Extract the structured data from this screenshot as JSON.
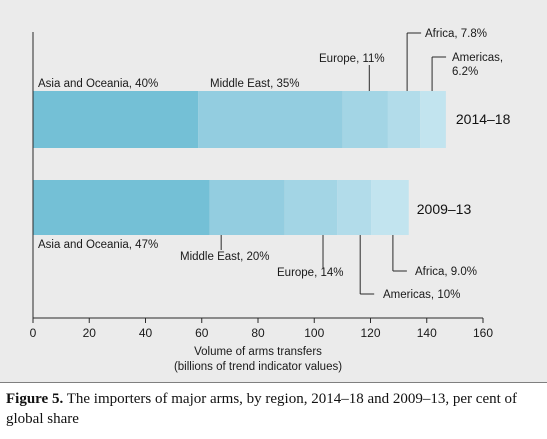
{
  "caption": {
    "label": "Figure 5.",
    "text": "The importers of major arms, by region, 2014–18 and 2009–13, per cent of global share"
  },
  "colors": {
    "background": "#ebebeb",
    "segments": [
      "#74c0d6",
      "#93cde0",
      "#a3d5e5",
      "#b2dcea",
      "#c2e4ef"
    ]
  },
  "chart_data": {
    "type": "bar",
    "orientation": "horizontal",
    "stacked": true,
    "xlabel": "Volume of arms transfers",
    "xlabel_sub": "(billions of trend indicator values)",
    "xlim": [
      0,
      160
    ],
    "xticks": [
      0,
      20,
      40,
      60,
      80,
      100,
      120,
      140,
      160
    ],
    "categories": [
      "2014–18",
      "2009–13"
    ],
    "series": [
      {
        "name": "Asia and Oceania",
        "values": [
          58.7,
          62.8
        ]
      },
      {
        "name": "Middle East",
        "values": [
          51.4,
          26.7
        ]
      },
      {
        "name": "Europe",
        "values": [
          16.1,
          18.7
        ]
      },
      {
        "name": "Africa",
        "values": [
          11.5,
          12.0
        ]
      },
      {
        "name": "Americas",
        "values": [
          9.1,
          13.4
        ]
      }
    ],
    "labels": {
      "2014–18": [
        "Asia and Oceania, 40%",
        "Middle East, 35%",
        "Europe, 11%",
        "Africa, 7.8%",
        "Americas,",
        "6.2%"
      ],
      "2009–13": [
        "Asia and Oceania, 47%",
        "Middle East, 20%",
        "Europe, 14%",
        "Africa, 9.0%",
        "Americas, 10%"
      ]
    }
  }
}
